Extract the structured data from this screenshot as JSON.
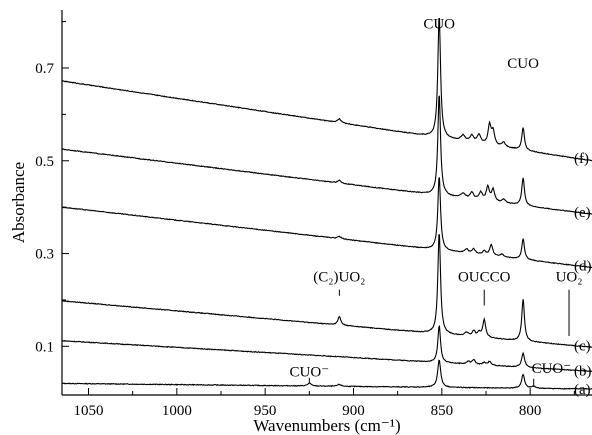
{
  "chart_data": {
    "type": "line",
    "title": "",
    "xlabel": "Wavenumbers (cm⁻¹)",
    "ylabel": "Absorbance",
    "xlim": [
      1065,
      765
    ],
    "ylim": [
      -0.005,
      0.825
    ],
    "x_reversed": true,
    "x_ticks": [
      1050,
      1000,
      950,
      900,
      850,
      800
    ],
    "y_ticks": [
      0.1,
      0.3,
      0.5,
      0.7
    ],
    "grid": false,
    "series": [
      {
        "name": "(a)",
        "baseline": [
          [
            1065,
            0.02
          ],
          [
            765,
            0.008
          ]
        ],
        "peaks": [
          [
            925,
            0.006,
            1.2
          ],
          [
            908,
            0.004,
            1.2
          ],
          [
            851.5,
            0.06,
            1.0
          ],
          [
            804,
            0.03,
            1.0
          ],
          [
            798,
            0.004,
            1.2
          ]
        ]
      },
      {
        "name": "(b)",
        "baseline": [
          [
            1065,
            0.112
          ],
          [
            765,
            0.046
          ]
        ],
        "peaks": [
          [
            851.5,
            0.08,
            0.9
          ],
          [
            835,
            0.006,
            1.0
          ],
          [
            832,
            0.01,
            1.0
          ],
          [
            826,
            0.005,
            1.2
          ],
          [
            823,
            0.008,
            1.0
          ],
          [
            804,
            0.03,
            1.0
          ]
        ]
      },
      {
        "name": "(c)",
        "baseline": [
          [
            1065,
            0.198
          ],
          [
            765,
            0.098
          ]
        ],
        "peaks": [
          [
            908,
            0.018,
            1.0
          ],
          [
            851.5,
            0.22,
            0.9
          ],
          [
            836,
            0.008,
            1.2
          ],
          [
            832,
            0.012,
            1.0
          ],
          [
            829,
            0.01,
            1.0
          ],
          [
            826,
            0.038,
            1.0
          ],
          [
            804,
            0.09,
            0.9
          ]
        ]
      },
      {
        "name": "(d)",
        "baseline": [
          [
            1065,
            0.4
          ],
          [
            765,
            0.27
          ]
        ],
        "peaks": [
          [
            908,
            0.005,
            1.2
          ],
          [
            851.5,
            0.16,
            0.9
          ],
          [
            836,
            0.008,
            1.2
          ],
          [
            832,
            0.01,
            1.2
          ],
          [
            826,
            0.008,
            1.2
          ],
          [
            822,
            0.024,
            1.0
          ],
          [
            816,
            0.006,
            1.2
          ],
          [
            804,
            0.045,
            0.9
          ]
        ]
      },
      {
        "name": "(e)",
        "baseline": [
          [
            1065,
            0.525
          ],
          [
            765,
            0.385
          ]
        ],
        "peaks": [
          [
            908,
            0.006,
            1.2
          ],
          [
            851.5,
            0.22,
            0.9
          ],
          [
            838,
            0.01,
            1.5
          ],
          [
            833,
            0.014,
            1.2
          ],
          [
            828,
            0.016,
            1.2
          ],
          [
            824,
            0.03,
            1.0
          ],
          [
            821,
            0.026,
            1.0
          ],
          [
            815,
            0.008,
            1.2
          ],
          [
            804,
            0.06,
            0.9
          ]
        ]
      },
      {
        "name": "(f)",
        "baseline": [
          [
            1065,
            0.672
          ],
          [
            765,
            0.5
          ]
        ],
        "peaks": [
          [
            908,
            0.008,
            1.2
          ],
          [
            851.5,
            0.265,
            0.9
          ],
          [
            838,
            0.012,
            1.5
          ],
          [
            833,
            0.014,
            1.2
          ],
          [
            829,
            0.018,
            1.2
          ],
          [
            823,
            0.042,
            1.0
          ],
          [
            821,
            0.03,
            1.0
          ],
          [
            815,
            0.01,
            1.2
          ],
          [
            804,
            0.048,
            0.9
          ]
        ]
      }
    ],
    "annotations": [
      {
        "text": "CUO",
        "x": 851.5,
        "y": 0.785
      },
      {
        "text": "CUO",
        "x": 804,
        "y": 0.7
      },
      {
        "text": "(C₂)UO₂",
        "x": 908,
        "y": 0.24
      },
      {
        "text": "OUCCO",
        "x": 826,
        "y": 0.24
      },
      {
        "text": "UO₂",
        "x": 778,
        "y": 0.24
      },
      {
        "text": "CUO⁻",
        "x": 925,
        "y": 0.035
      },
      {
        "text": "CUO⁻",
        "x": 788,
        "y": 0.042
      }
    ],
    "markers": [
      {
        "x": 908,
        "y1": 0.209,
        "y2": 0.222
      },
      {
        "x": 826,
        "y1": 0.188,
        "y2": 0.222
      },
      {
        "x": 778,
        "y1": 0.122,
        "y2": 0.222
      },
      {
        "x": 925,
        "y1": 0.022,
        "y2": 0.032
      },
      {
        "x": 798,
        "y1": 0.014,
        "y2": 0.03
      }
    ]
  }
}
